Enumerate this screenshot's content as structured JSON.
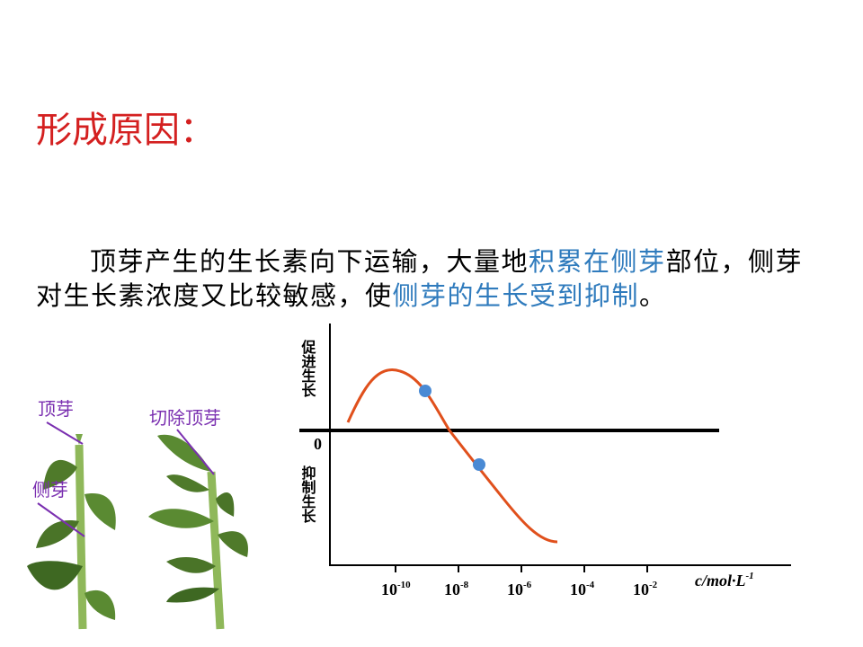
{
  "title": "形成原因：",
  "paragraph": {
    "segments": [
      "顶芽产生的生长素向下运输，大量地",
      "积累在侧芽",
      "部位，侧芽对生长素浓度又比较敏感，使",
      "侧芽的生长受到抑制",
      "。"
    ]
  },
  "labels": [
    "顶芽",
    "侧芽",
    "切除顶芽"
  ],
  "chart": {
    "y_labels": [
      "促进生长",
      "0",
      "抑制生长"
    ],
    "x_ticks": [
      {
        "base": "10",
        "exp": "-10"
      },
      {
        "base": "10",
        "exp": "-8"
      },
      {
        "base": "10",
        "exp": "-6"
      },
      {
        "base": "10",
        "exp": "-4"
      },
      {
        "base": "10",
        "exp": "-2"
      }
    ],
    "x_label": {
      "base": "c/mol·L",
      "exp": "-1"
    }
  }
}
